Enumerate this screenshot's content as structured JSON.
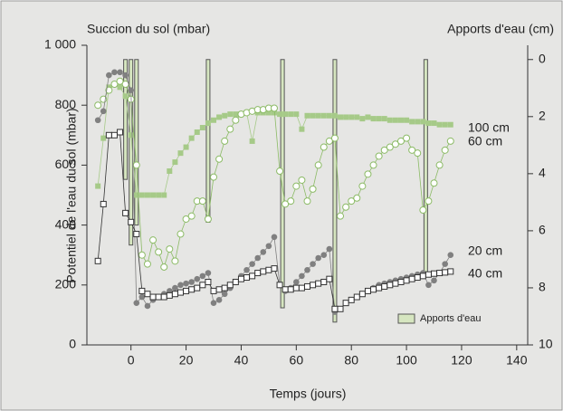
{
  "chart_data": {
    "type": "line",
    "left_axis_title": "Succion du sol (mbar)",
    "right_axis_title": "Apports d'eau (cm)",
    "xlabel": "Temps (jours)",
    "ylabel": "Potentiel de l'eau du sol (mbar)",
    "xlim": [
      -16,
      144
    ],
    "xticks": [
      0,
      20,
      40,
      60,
      80,
      100,
      120,
      140
    ],
    "ylim": [
      0,
      1000
    ],
    "yticks": [
      0,
      200,
      400,
      600,
      800,
      {
        "value": 1000,
        "label": "1 000"
      }
    ],
    "y2lim": [
      10,
      -0.5
    ],
    "y2ticks": [
      0,
      2,
      4,
      6,
      8,
      10
    ],
    "legend": "lower right",
    "x": [
      -12,
      -10,
      -8,
      -6,
      -4,
      -2,
      0,
      2,
      4,
      6,
      8,
      10,
      12,
      14,
      16,
      18,
      20,
      22,
      24,
      26,
      28,
      30,
      32,
      34,
      36,
      38,
      40,
      42,
      44,
      46,
      48,
      50,
      52,
      54,
      56,
      58,
      60,
      62,
      64,
      66,
      68,
      70,
      72,
      74,
      76,
      78,
      80,
      82,
      84,
      86,
      88,
      90,
      92,
      94,
      96,
      98,
      100,
      102,
      104,
      106,
      108,
      110,
      112,
      114,
      116
    ],
    "series": [
      {
        "name": "100 cm",
        "color": "#a6ca88",
        "marker": "square-filled",
        "values": [
          530,
          690,
          860,
          870,
          860,
          830,
          700,
          500,
          500,
          500,
          500,
          500,
          500,
          580,
          610,
          640,
          660,
          690,
          710,
          725,
          740,
          750,
          760,
          765,
          770,
          770,
          770,
          775,
          680,
          775,
          775,
          775,
          775,
          770,
          770,
          770,
          770,
          720,
          765,
          765,
          765,
          765,
          765,
          765,
          760,
          760,
          760,
          760,
          755,
          760,
          755,
          755,
          755,
          750,
          750,
          750,
          750,
          745,
          745,
          745,
          740,
          740,
          735,
          735,
          735
        ]
      },
      {
        "name": "60 cm",
        "color": "#8cbb66",
        "marker": "circle-open",
        "values": [
          800,
          820,
          850,
          870,
          880,
          870,
          820,
          600,
          300,
          270,
          350,
          310,
          260,
          320,
          280,
          370,
          420,
          430,
          480,
          480,
          420,
          560,
          620,
          680,
          720,
          750,
          770,
          775,
          780,
          785,
          785,
          790,
          790,
          580,
          470,
          480,
          530,
          550,
          480,
          520,
          600,
          660,
          680,
          690,
          430,
          460,
          480,
          490,
          530,
          570,
          600,
          630,
          650,
          660,
          670,
          680,
          690,
          650,
          640,
          450,
          480,
          540,
          600,
          650,
          680
        ]
      },
      {
        "name": "20 cm",
        "color": "#808080",
        "marker": "circle-filled",
        "values": [
          750,
          780,
          900,
          910,
          910,
          900,
          850,
          140,
          160,
          130,
          150,
          160,
          170,
          180,
          190,
          200,
          205,
          210,
          220,
          230,
          240,
          140,
          150,
          170,
          190,
          210,
          230,
          250,
          270,
          290,
          310,
          330,
          360,
          200,
          180,
          190,
          210,
          230,
          250,
          270,
          290,
          300,
          320,
          110,
          120,
          140,
          150,
          160,
          170,
          180,
          190,
          200,
          205,
          210,
          215,
          220,
          225,
          230,
          235,
          240,
          200,
          215,
          240,
          270,
          300
        ]
      },
      {
        "name": "40 cm",
        "color": "#333333",
        "marker": "square-open",
        "values": [
          280,
          470,
          700,
          700,
          710,
          440,
          410,
          370,
          180,
          170,
          160,
          160,
          160,
          165,
          170,
          175,
          180,
          185,
          190,
          200,
          210,
          180,
          185,
          190,
          200,
          210,
          220,
          225,
          230,
          240,
          245,
          250,
          255,
          200,
          185,
          185,
          190,
          190,
          195,
          200,
          205,
          210,
          220,
          120,
          120,
          140,
          150,
          160,
          170,
          180,
          185,
          190,
          195,
          200,
          205,
          210,
          215,
          220,
          225,
          230,
          235,
          238,
          240,
          242,
          245
        ]
      },
      {
        "name": "Apports d'eau",
        "type": "bar",
        "axis": "y2",
        "color": "#d6e6c0",
        "x": [
          -2,
          0,
          2,
          28,
          55,
          74,
          107
        ],
        "values": [
          4.2,
          6.5,
          5.8,
          5.7,
          8.7,
          9.2,
          7.6
        ]
      }
    ]
  }
}
